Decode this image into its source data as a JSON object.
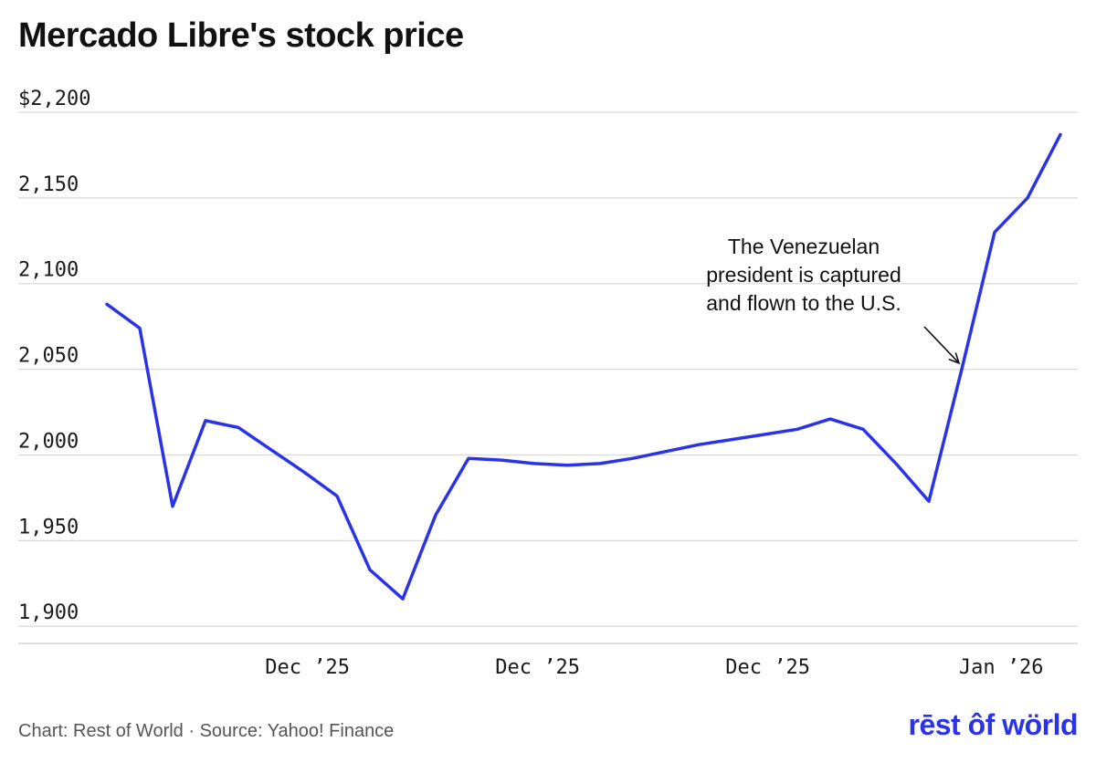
{
  "header": {
    "title": "Mercado Libre's stock price"
  },
  "chart_data": {
    "type": "line",
    "title": "Mercado Libre's stock price",
    "xlabel": "",
    "ylabel": "",
    "ylim": [
      1890,
      2200
    ],
    "y_ticks": [
      {
        "value": 2200,
        "label": "$2,200"
      },
      {
        "value": 2150,
        "label": "2,150"
      },
      {
        "value": 2100,
        "label": "2,100"
      },
      {
        "value": 2050,
        "label": "2,050"
      },
      {
        "value": 2000,
        "label": "2,000"
      },
      {
        "value": 1950,
        "label": "1,950"
      },
      {
        "value": 1900,
        "label": "1,900"
      }
    ],
    "x_ticks": [
      {
        "index": 6.1,
        "label": "Dec ’25"
      },
      {
        "index": 13.1,
        "label": "Dec ’25"
      },
      {
        "index": 20.1,
        "label": "Dec ’25"
      },
      {
        "index": 27.2,
        "label": "Jan ’26"
      }
    ],
    "series": [
      {
        "name": "Mercado Libre",
        "color": "#2b33e6",
        "x": [
          0,
          1,
          2,
          3,
          4,
          5,
          6,
          7,
          8,
          9,
          10,
          11,
          12,
          13,
          14,
          15,
          16,
          17,
          18,
          19,
          20,
          21,
          22,
          23,
          24,
          25,
          26,
          27,
          28,
          29
        ],
        "values": [
          2088,
          2074,
          1970,
          2020,
          2016,
          2003,
          1990,
          1976,
          1933,
          1916,
          1965,
          1998,
          1997,
          1995,
          1994,
          1995,
          1998,
          2002,
          2006,
          2009,
          2012,
          2015,
          2021,
          2015,
          1995,
          1973,
          2050,
          2130,
          2150,
          2187
        ]
      }
    ],
    "annotation": {
      "lines": [
        "The Venezuelan",
        "president is captured",
        "and flown to the U.S."
      ],
      "target_index": 26,
      "target_value": 2052
    }
  },
  "footer": {
    "credit": "Chart: Rest of World · Source: Yahoo! Finance",
    "logo": "rēst ôf wörld",
    "logo_color": "#2b33e6"
  }
}
